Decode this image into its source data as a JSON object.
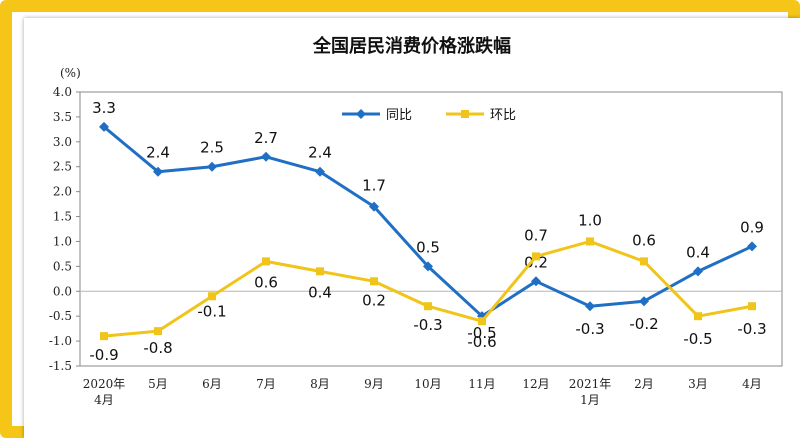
{
  "chart_data": {
    "type": "line",
    "title": "全国居民消费价格涨跌幅",
    "ylabel": "(%)",
    "xlabel": "",
    "ylim": [
      -1.5,
      4.0
    ],
    "ytick_step": 0.5,
    "categories": [
      [
        "2020年",
        "4月"
      ],
      [
        "5月"
      ],
      [
        "6月"
      ],
      [
        "7月"
      ],
      [
        "8月"
      ],
      [
        "9月"
      ],
      [
        "10月"
      ],
      [
        "11月"
      ],
      [
        "12月"
      ],
      [
        "2021年",
        "1月"
      ],
      [
        "2月"
      ],
      [
        "3月"
      ],
      [
        "4月"
      ]
    ],
    "series": [
      {
        "name": "同比",
        "color": "#1f6fc5",
        "marker": "diamond",
        "values": [
          3.3,
          2.4,
          2.5,
          2.7,
          2.4,
          1.7,
          0.5,
          -0.5,
          0.2,
          -0.3,
          -0.2,
          0.4,
          0.9
        ],
        "labels": [
          "3.3",
          "2.4",
          "2.5",
          "2.7",
          "2.4",
          "1.7",
          "0.5",
          "-0.5",
          "0.2",
          "-0.3",
          "-0.2",
          "0.4",
          "0.9"
        ]
      },
      {
        "name": "环比",
        "color": "#f0c419",
        "marker": "square",
        "values": [
          -0.9,
          -0.8,
          -0.1,
          0.6,
          0.4,
          0.2,
          -0.3,
          -0.6,
          0.7,
          1.0,
          0.6,
          -0.5,
          -0.3
        ],
        "labels": [
          "-0.9",
          "-0.8",
          "-0.1",
          "0.6",
          "0.4",
          "0.2",
          "-0.3",
          "-0.6",
          "0.7",
          "1.0",
          "0.6",
          "-0.5",
          "-0.3"
        ]
      }
    ],
    "legend": "top-center",
    "grid": false
  }
}
